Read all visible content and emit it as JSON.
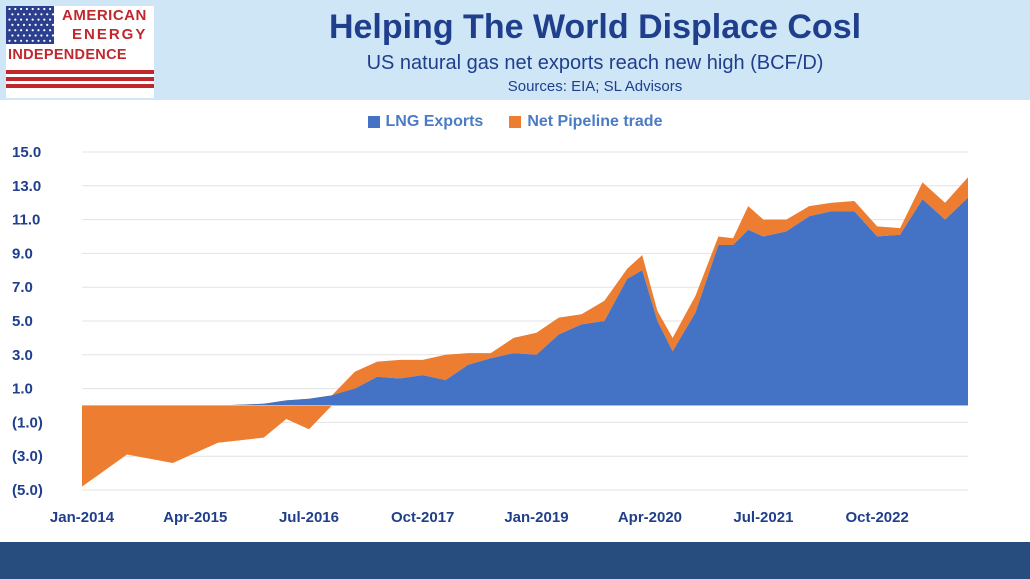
{
  "header": {
    "title": "Helping The World Displace Cosl",
    "subtitle": "US natural gas net exports reach new high (BCF/D)",
    "source": "Sources: EIA; SL Advisors"
  },
  "logo": {
    "line1": "AMERICAN",
    "line2": "ENERGY",
    "line3": "INDEPENDENCE",
    "flag_blue": "#2c3f8f",
    "stripe_red": "#c0282d"
  },
  "colors": {
    "lng": "#4472c4",
    "pipeline": "#ed7d31",
    "axis_text": "#1f3f8c",
    "header_bg": "#cfe6f7",
    "footer_bg": "#264d7e"
  },
  "chart_data": {
    "type": "area",
    "stacked": true,
    "title": "",
    "xlabel": "",
    "ylabel": "",
    "ylim": [
      -5.0,
      15.0
    ],
    "yticks": [
      "(5.0)",
      "(3.0)",
      "(1.0)",
      "1.0",
      "3.0",
      "5.0",
      "7.0",
      "9.0",
      "11.0",
      "13.0",
      "15.0"
    ],
    "ytick_values": [
      -5,
      -3,
      -1,
      1,
      3,
      5,
      7,
      9,
      11,
      13,
      15
    ],
    "xticks": [
      "Jan-2014",
      "Apr-2015",
      "Jul-2016",
      "Oct-2017",
      "Jan-2019",
      "Apr-2020",
      "Jul-2021",
      "Oct-2022"
    ],
    "grid": true,
    "legend": "top",
    "x": [
      "2014-01",
      "2014-07",
      "2015-01",
      "2015-07",
      "2016-01",
      "2016-04",
      "2016-07",
      "2016-10",
      "2017-01",
      "2017-04",
      "2017-07",
      "2017-10",
      "2018-01",
      "2018-04",
      "2018-07",
      "2018-10",
      "2019-01",
      "2019-04",
      "2019-07",
      "2019-10",
      "2020-01",
      "2020-03",
      "2020-05",
      "2020-07",
      "2020-10",
      "2021-01",
      "2021-03",
      "2021-05",
      "2021-07",
      "2021-10",
      "2022-01",
      "2022-04",
      "2022-07",
      "2022-10",
      "2023-01",
      "2023-04",
      "2023-07",
      "2023-10"
    ],
    "series": [
      {
        "name": "LNG Exports",
        "values": [
          0.0,
          0.0,
          0.0,
          0.0,
          0.1,
          0.3,
          0.4,
          0.6,
          1.0,
          1.7,
          1.6,
          1.8,
          1.5,
          2.4,
          2.8,
          3.1,
          3.0,
          4.2,
          4.8,
          5.0,
          7.5,
          8.0,
          5.0,
          3.2,
          5.5,
          9.5,
          9.5,
          10.4,
          10.0,
          10.3,
          11.2,
          11.5,
          11.5,
          10.0,
          10.1,
          12.2,
          11.0,
          12.3
        ]
      },
      {
        "name": "Net Pipeline trade",
        "values": [
          -4.8,
          -2.9,
          -3.4,
          -2.2,
          -2.0,
          -1.1,
          -1.8,
          -0.6,
          1.0,
          0.9,
          1.1,
          0.9,
          1.5,
          0.7,
          0.3,
          0.9,
          1.3,
          1.0,
          0.6,
          1.2,
          0.6,
          0.9,
          0.6,
          0.8,
          1.0,
          0.5,
          0.4,
          1.4,
          1.0,
          0.7,
          0.6,
          0.5,
          0.6,
          0.6,
          0.4,
          1.0,
          1.0,
          1.2
        ]
      }
    ]
  }
}
